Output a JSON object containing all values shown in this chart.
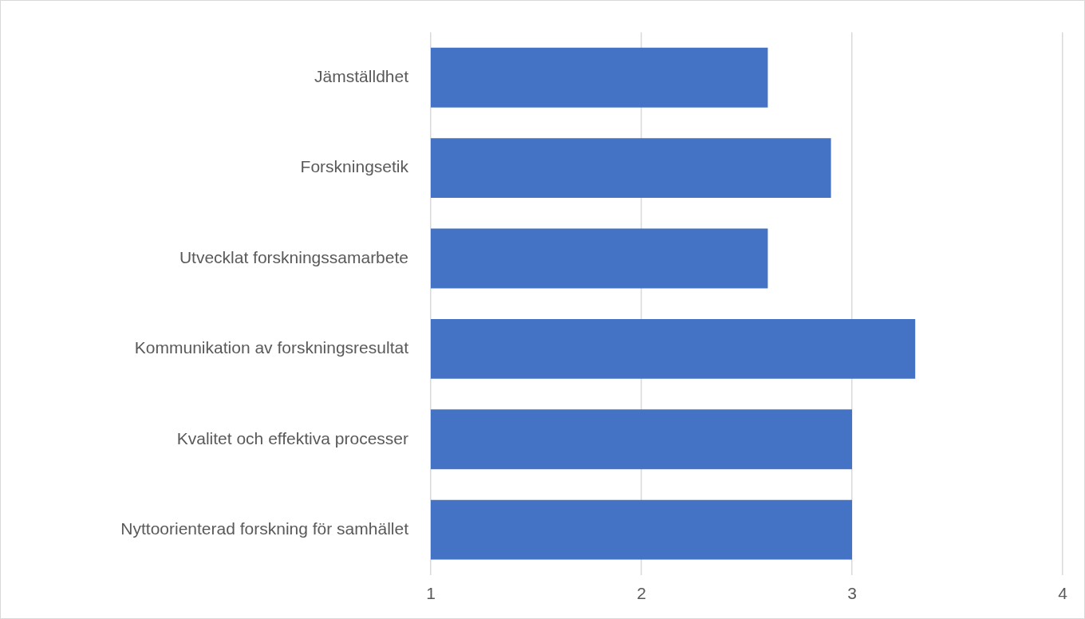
{
  "chart_data": {
    "type": "bar",
    "orientation": "horizontal",
    "categories": [
      "Jämställdhet",
      "Forskningsetik",
      "Utvecklat forskningssamarbete",
      "Kommunikation av forskningsresultat",
      "Kvalitet och effektiva processer",
      "Nyttoorienterad forskning för samhället"
    ],
    "values": [
      2.6,
      2.9,
      2.6,
      3.3,
      3.0,
      3.0
    ],
    "color": "#4472c4",
    "xlim": [
      1,
      4
    ],
    "xticks": [
      1,
      2,
      3,
      4
    ],
    "grid": "x",
    "legend": false
  }
}
